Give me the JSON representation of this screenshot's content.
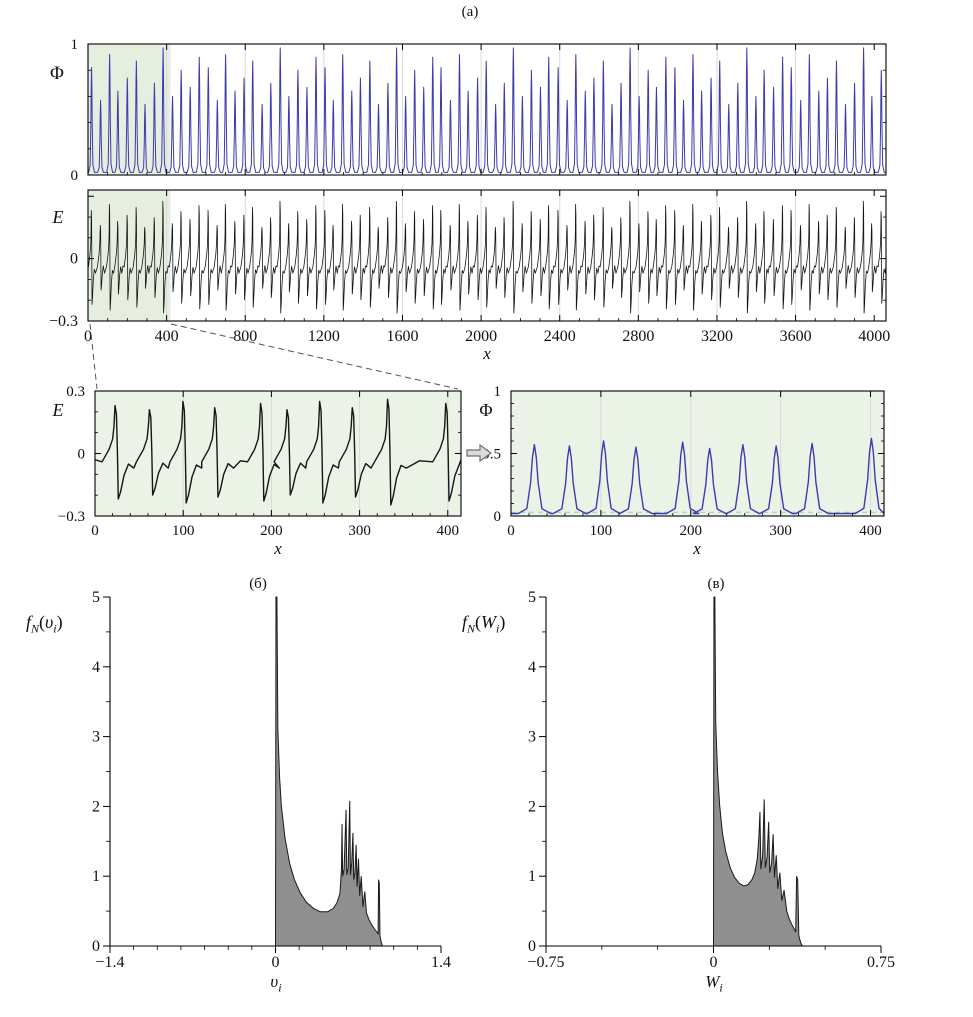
{
  "figure": {
    "label_a": "(а)",
    "label_b": "(б)",
    "label_c": "(в)"
  },
  "colors": {
    "phi": "#3c3cae",
    "e": "#161616",
    "highlight": "#e6eee0",
    "zoom_bg": "#ebf2e6",
    "density_fill": "#8f8f8f",
    "density_edge": "#1a1a1a",
    "grid": "#d9d9d9",
    "axis": "#000000",
    "baseline_dash": "#9fc7b8",
    "connector": "#555555",
    "arrow_fill": "#d9ded5",
    "arrow_edge": "#6e6e6e"
  },
  "chart_data": {
    "phi_full": {
      "type": "line",
      "subtype": "pulse_train",
      "ylabel": "Φ",
      "xlim": [
        0,
        4060
      ],
      "ylim": [
        0,
        1
      ],
      "yticks": [
        {
          "v": 0,
          "label": "0"
        },
        {
          "v": 1,
          "label": "1"
        }
      ],
      "yminor": [
        0.2,
        0.4,
        0.6,
        0.8
      ],
      "xticks": [],
      "xticks_unlabeled": [
        400,
        800,
        1200,
        1600,
        2000,
        2400,
        2800,
        3200,
        3600,
        4000
      ],
      "xminor_step": 100,
      "grid_x": [
        400,
        800,
        1200,
        1600,
        2000,
        2400,
        2800,
        3200,
        3600
      ],
      "highlight_x": [
        0,
        420
      ],
      "baseline": 0.02,
      "pulse_width": 5,
      "pulse_xs": [
        18,
        64,
        110,
        152,
        200,
        246,
        290,
        338,
        382,
        430,
        474,
        520,
        566,
        612,
        658,
        700,
        748,
        794,
        838,
        886,
        930,
        978,
        1022,
        1068,
        1114,
        1160,
        1206,
        1248,
        1296,
        1342,
        1386,
        1434,
        1478,
        1526,
        1570,
        1616,
        1662,
        1708,
        1754,
        1796,
        1844,
        1890,
        1934,
        1982,
        2026,
        2074,
        2118,
        2164,
        2210,
        2256,
        2302,
        2344,
        2392,
        2438,
        2482,
        2530,
        2574,
        2622,
        2666,
        2712,
        2758,
        2804,
        2850,
        2892,
        2940,
        2986,
        3030,
        3078,
        3122,
        3170,
        3214,
        3260,
        3306,
        3352,
        3398,
        3440,
        3488,
        3534,
        3578,
        3626,
        3670,
        3718,
        3762,
        3808,
        3854,
        3900,
        3946,
        3988,
        4036
      ],
      "pulse_heights": [
        0.8,
        0.55,
        0.9,
        0.62,
        0.72,
        0.85,
        0.52,
        0.68,
        0.95,
        0.58,
        0.78,
        0.65,
        0.88,
        0.8,
        0.55,
        0.9,
        0.62,
        0.72,
        0.85,
        0.52,
        0.68,
        0.95,
        0.58,
        0.78,
        0.65,
        0.88,
        0.8,
        0.55,
        0.9,
        0.62,
        0.72,
        0.85,
        0.52,
        0.68,
        0.95,
        0.58,
        0.78,
        0.65,
        0.88,
        0.8,
        0.55,
        0.9,
        0.62,
        0.72,
        0.85,
        0.52,
        0.68,
        0.95,
        0.58,
        0.78,
        0.65,
        0.88,
        0.8,
        0.55,
        0.9,
        0.62,
        0.72,
        0.85,
        0.52,
        0.68,
        0.95,
        0.58,
        0.78,
        0.65,
        0.88,
        0.8,
        0.55,
        0.9,
        0.62,
        0.72,
        0.85,
        0.52,
        0.68,
        0.95,
        0.58,
        0.78,
        0.65,
        0.88,
        0.8,
        0.55,
        0.9,
        0.62,
        0.72,
        0.85,
        0.52,
        0.68,
        0.95,
        0.58,
        0.78
      ]
    },
    "e_full": {
      "type": "line",
      "subtype": "relaxation",
      "ylabel": "E",
      "xlabel": "x",
      "xlim": [
        0,
        4060
      ],
      "ylim": [
        -0.3,
        0.33
      ],
      "yticks": [
        {
          "v": 0.3,
          "label": ""
        },
        {
          "v": 0,
          "label": "0"
        },
        {
          "v": -0.3,
          "label": "−0.3"
        }
      ],
      "yminor": [
        -0.2,
        -0.1,
        0.1,
        0.2
      ],
      "xticks": [
        {
          "v": 0,
          "label": "0"
        },
        {
          "v": 400,
          "label": "400"
        },
        {
          "v": 800,
          "label": "800"
        },
        {
          "v": 1200,
          "label": "1200"
        },
        {
          "v": 1600,
          "label": "1600"
        },
        {
          "v": 2000,
          "label": "2000"
        },
        {
          "v": 2400,
          "label": "2400"
        },
        {
          "v": 2800,
          "label": "2800"
        },
        {
          "v": 3200,
          "label": "3200"
        },
        {
          "v": 3600,
          "label": "3600"
        },
        {
          "v": 4000,
          "label": "4000"
        }
      ],
      "xminor_step": 100,
      "grid_x": [
        400,
        800,
        1200,
        1600,
        2000,
        2400,
        2800,
        3200,
        3600
      ],
      "highlight_x": [
        0,
        420
      ],
      "spikes_from": "phi_full",
      "amp_scale": 0.29
    },
    "e_zoom": {
      "type": "line",
      "subtype": "relaxation",
      "ylabel": "E",
      "xlabel": "x",
      "xlim": [
        0,
        415
      ],
      "ylim": [
        -0.3,
        0.3
      ],
      "yticks": [
        {
          "v": 0.3,
          "label": "0.3"
        },
        {
          "v": 0,
          "label": "0"
        },
        {
          "v": -0.3,
          "label": "−0.3"
        }
      ],
      "yminor": [
        -0.2,
        -0.1,
        0.1,
        0.2
      ],
      "xticks": [
        {
          "v": 0,
          "label": "0"
        },
        {
          "v": 100,
          "label": "100"
        },
        {
          "v": 200,
          "label": "200"
        },
        {
          "v": 300,
          "label": "300"
        },
        {
          "v": 400,
          "label": "400"
        }
      ],
      "xminor_step": 20,
      "grid_x": [
        100,
        200,
        300,
        400
      ],
      "spike_xs": [
        24,
        63,
        101,
        137,
        189,
        219,
        256,
        293,
        333,
        399
      ],
      "spike_amps": [
        0.23,
        0.21,
        0.25,
        0.22,
        0.24,
        0.21,
        0.25,
        0.22,
        0.26,
        0.24
      ]
    },
    "phi_zoom": {
      "type": "line",
      "subtype": "pulse_train",
      "ylabel": "Φ",
      "xlabel": "x",
      "xlim": [
        0,
        415
      ],
      "ylim": [
        0,
        1
      ],
      "yticks": [
        {
          "v": 1,
          "label": "1"
        },
        {
          "v": 0.5,
          "label": "0.5"
        },
        {
          "v": 0,
          "label": "0"
        }
      ],
      "yminor": [
        0.1,
        0.2,
        0.3,
        0.4,
        0.6,
        0.7,
        0.8,
        0.9
      ],
      "xticks": [
        {
          "v": 0,
          "label": "0"
        },
        {
          "v": 100,
          "label": "100"
        },
        {
          "v": 200,
          "label": "200"
        },
        {
          "v": 300,
          "label": "300"
        },
        {
          "v": 400,
          "label": "400"
        }
      ],
      "xminor_step": 20,
      "grid_x": [
        100,
        200,
        300,
        400
      ],
      "zero_dash": true,
      "baseline": 0.02,
      "pulse_width": 6,
      "pulse_xs": [
        26,
        65,
        103,
        139,
        191,
        221,
        258,
        295,
        335,
        401
      ],
      "pulse_heights": [
        0.55,
        0.54,
        0.58,
        0.53,
        0.57,
        0.52,
        0.55,
        0.54,
        0.56,
        0.6
      ]
    },
    "hist_v": {
      "type": "area",
      "subtype": "density",
      "ylabel_parts": {
        "base": "f",
        "sub": "N",
        "open": "(",
        "arg": "υ",
        "argsub": "i",
        "close": ")"
      },
      "xlabel_parts": {
        "arg": "υ",
        "sub": "i"
      },
      "xlim": [
        -1.4,
        1.4
      ],
      "ylim": [
        0,
        5
      ],
      "yticks": [
        {
          "v": 0,
          "label": "0"
        },
        {
          "v": 1,
          "label": "1"
        },
        {
          "v": 2,
          "label": "2"
        },
        {
          "v": 3,
          "label": "3"
        },
        {
          "v": 4,
          "label": "4"
        },
        {
          "v": 5,
          "label": "5"
        }
      ],
      "yminor": [
        0.5,
        1.5,
        2.5,
        3.5,
        4.5
      ],
      "xticks": [
        {
          "v": -1.4,
          "label": "−1.4"
        },
        {
          "v": 0,
          "label": "0"
        },
        {
          "v": 1.4,
          "label": "1.4"
        }
      ],
      "xminor_step": 0.2,
      "outline": [
        [
          0,
          0
        ],
        [
          0.004,
          5.4
        ],
        [
          0.012,
          5.4
        ],
        [
          0.02,
          3.1
        ],
        [
          0.035,
          2.4
        ],
        [
          0.05,
          2.0
        ],
        [
          0.08,
          1.55
        ],
        [
          0.12,
          1.18
        ],
        [
          0.16,
          0.95
        ],
        [
          0.21,
          0.76
        ],
        [
          0.26,
          0.63
        ],
        [
          0.32,
          0.54
        ],
        [
          0.38,
          0.49
        ],
        [
          0.44,
          0.49
        ],
        [
          0.49,
          0.54
        ],
        [
          0.52,
          0.62
        ],
        [
          0.545,
          0.75
        ],
        [
          0.558,
          1.1
        ],
        [
          0.563,
          1.75
        ],
        [
          0.568,
          1.0
        ],
        [
          0.58,
          1.1
        ],
        [
          0.597,
          1.95
        ],
        [
          0.603,
          1.02
        ],
        [
          0.615,
          1.12
        ],
        [
          0.628,
          2.08
        ],
        [
          0.634,
          1.02
        ],
        [
          0.645,
          1.2
        ],
        [
          0.655,
          1.62
        ],
        [
          0.662,
          0.95
        ],
        [
          0.672,
          1.05
        ],
        [
          0.682,
          1.45
        ],
        [
          0.69,
          0.85
        ],
        [
          0.702,
          1.25
        ],
        [
          0.712,
          0.72
        ],
        [
          0.725,
          1.0
        ],
        [
          0.74,
          0.56
        ],
        [
          0.755,
          0.78
        ],
        [
          0.77,
          0.47
        ],
        [
          0.79,
          0.38
        ],
        [
          0.815,
          0.3
        ],
        [
          0.84,
          0.24
        ],
        [
          0.862,
          0.19
        ],
        [
          0.868,
          0.17
        ],
        [
          0.872,
          0.95
        ],
        [
          0.878,
          0.9
        ],
        [
          0.884,
          0.14
        ],
        [
          0.895,
          0.05
        ],
        [
          0.905,
          0
        ]
      ]
    },
    "hist_w": {
      "type": "area",
      "subtype": "density",
      "ylabel_parts": {
        "base": "f",
        "sub": "N",
        "open": "(",
        "arg": "W",
        "argsub": "i",
        "close": ")"
      },
      "xlabel_parts": {
        "arg": "W",
        "sub": "i"
      },
      "xlim": [
        -0.75,
        0.75
      ],
      "ylim": [
        0,
        5
      ],
      "yticks": [
        {
          "v": 0,
          "label": "0"
        },
        {
          "v": 1,
          "label": "1"
        },
        {
          "v": 2,
          "label": "2"
        },
        {
          "v": 3,
          "label": "3"
        },
        {
          "v": 4,
          "label": "4"
        },
        {
          "v": 5,
          "label": "5"
        }
      ],
      "yminor": [
        0.5,
        1.5,
        2.5,
        3.5,
        4.5
      ],
      "xticks": [
        {
          "v": -0.75,
          "label": "−0.75"
        },
        {
          "v": 0,
          "label": "0"
        },
        {
          "v": 0.75,
          "label": "0.75"
        }
      ],
      "xminor_step": 0.25,
      "outline": [
        [
          0,
          0
        ],
        [
          0.002,
          5.4
        ],
        [
          0.006,
          5.4
        ],
        [
          0.01,
          3.2
        ],
        [
          0.018,
          2.5
        ],
        [
          0.028,
          2.0
        ],
        [
          0.04,
          1.62
        ],
        [
          0.055,
          1.35
        ],
        [
          0.075,
          1.12
        ],
        [
          0.095,
          0.98
        ],
        [
          0.115,
          0.9
        ],
        [
          0.135,
          0.86
        ],
        [
          0.155,
          0.88
        ],
        [
          0.172,
          0.95
        ],
        [
          0.185,
          1.05
        ],
        [
          0.196,
          1.25
        ],
        [
          0.203,
          1.55
        ],
        [
          0.208,
          1.92
        ],
        [
          0.212,
          1.1
        ],
        [
          0.22,
          1.3
        ],
        [
          0.227,
          2.1
        ],
        [
          0.232,
          1.12
        ],
        [
          0.24,
          1.28
        ],
        [
          0.247,
          1.78
        ],
        [
          0.252,
          1.05
        ],
        [
          0.26,
          1.18
        ],
        [
          0.267,
          1.6
        ],
        [
          0.273,
          0.98
        ],
        [
          0.281,
          1.3
        ],
        [
          0.288,
          0.82
        ],
        [
          0.297,
          1.05
        ],
        [
          0.306,
          0.65
        ],
        [
          0.316,
          0.8
        ],
        [
          0.328,
          0.5
        ],
        [
          0.34,
          0.38
        ],
        [
          0.352,
          0.3
        ],
        [
          0.362,
          0.24
        ],
        [
          0.368,
          0.2
        ],
        [
          0.372,
          1.0
        ],
        [
          0.377,
          0.95
        ],
        [
          0.382,
          0.15
        ],
        [
          0.39,
          0.05
        ],
        [
          0.398,
          0
        ]
      ]
    }
  }
}
